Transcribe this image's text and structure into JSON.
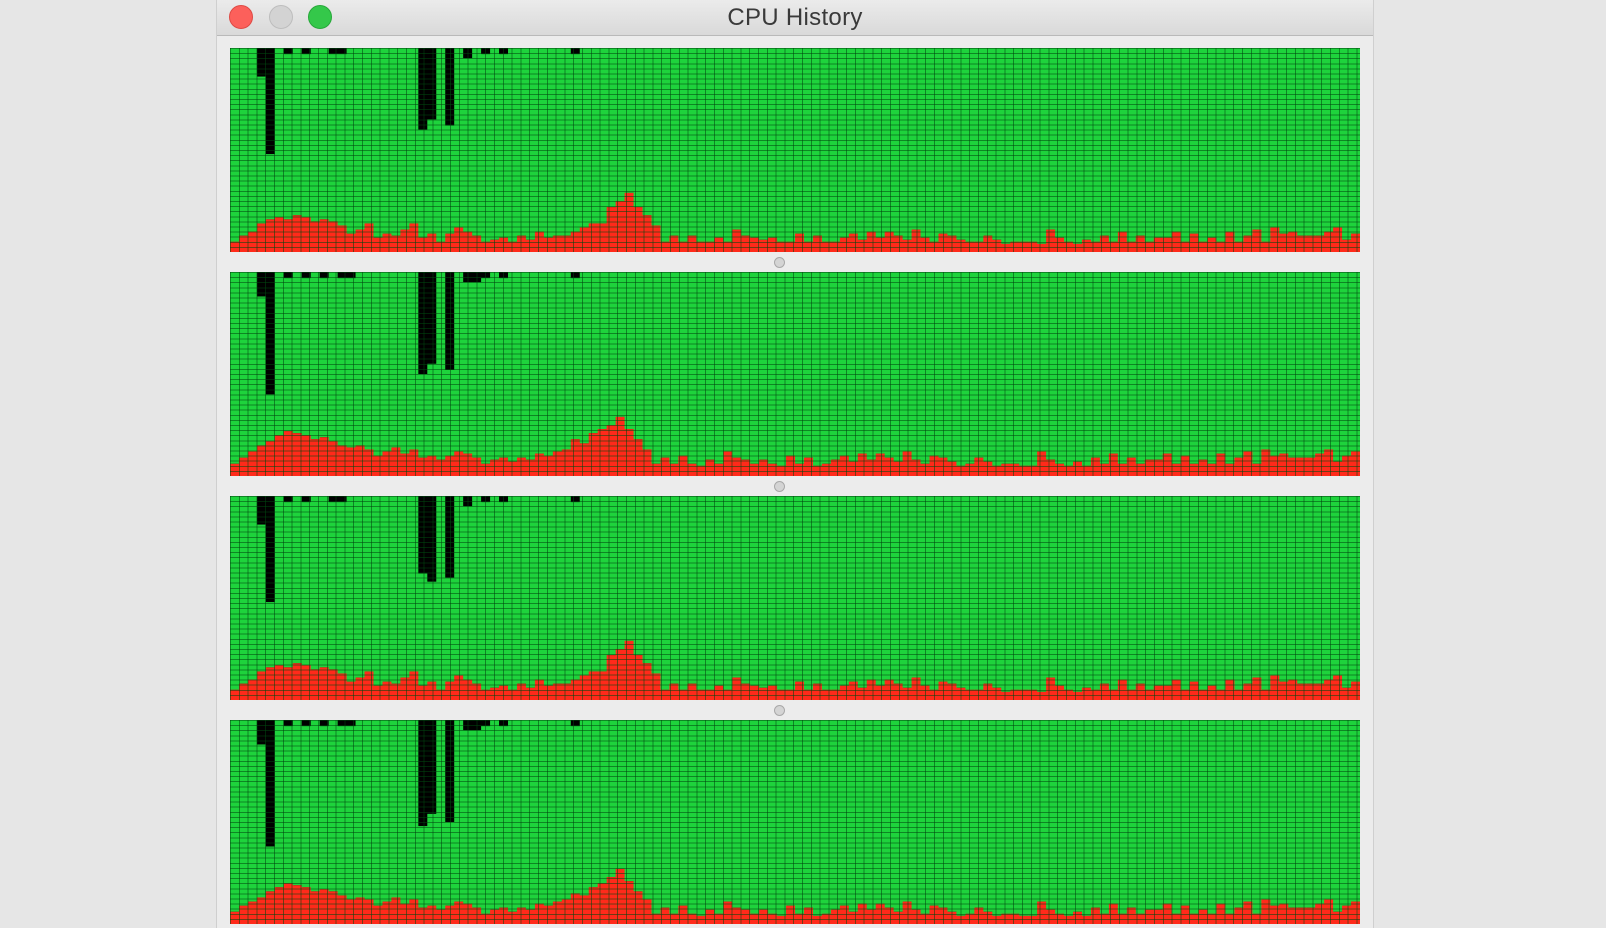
{
  "window": {
    "title": "CPU History",
    "buttons": [
      "close",
      "minimize",
      "zoom"
    ]
  },
  "colors": {
    "idle": "#1ed33c",
    "user": "#000000",
    "system": "#ff2a1a",
    "grid": "#0b3d12",
    "close": "#fc605b",
    "minimize": "#d3d3d3",
    "zoom": "#34c84a"
  },
  "chart_data": [
    {
      "type": "bar",
      "name": "",
      "samples": 126,
      "ylim": [
        0,
        100
      ],
      "series": [
        {
          "name": "system",
          "values": [
            5,
            8,
            10,
            14,
            16,
            17,
            16,
            18,
            17,
            15,
            16,
            15,
            13,
            9,
            11,
            14,
            7,
            9,
            8,
            11,
            14,
            7,
            9,
            5,
            9,
            12,
            10,
            8,
            5,
            6,
            7,
            5,
            8,
            6,
            10,
            7,
            8,
            8,
            10,
            12,
            14,
            14,
            22,
            25,
            29,
            22,
            18,
            13,
            5,
            8,
            5,
            8,
            5,
            5,
            7,
            5,
            11,
            8,
            7,
            6,
            7,
            5,
            5,
            9,
            5,
            8,
            5,
            5,
            7,
            9,
            6,
            10,
            7,
            10,
            8,
            6,
            11,
            7,
            5,
            9,
            8,
            6,
            5,
            5,
            8,
            6,
            4,
            5,
            5,
            5,
            4,
            11,
            7,
            5,
            4,
            6,
            5,
            8,
            5,
            10,
            5,
            8,
            5,
            7,
            7,
            10,
            5,
            9,
            5,
            7,
            5,
            10,
            5,
            8,
            11,
            5,
            12,
            9,
            10,
            8,
            8,
            8,
            10,
            12,
            6,
            9
          ]
        },
        {
          "name": "user",
          "values": [
            0,
            0,
            0,
            14,
            52,
            0,
            3,
            0,
            3,
            0,
            0,
            3,
            3,
            0,
            0,
            0,
            0,
            0,
            0,
            0,
            0,
            40,
            35,
            0,
            38,
            0,
            5,
            0,
            3,
            0,
            3,
            0,
            0,
            0,
            0,
            0,
            0,
            0,
            3,
            0,
            0,
            0,
            0,
            0,
            0,
            0,
            0,
            0,
            0,
            0,
            0,
            0,
            0,
            0,
            0,
            0,
            0,
            0,
            0,
            0,
            0,
            0,
            0,
            0,
            0,
            0,
            0,
            0,
            0,
            0,
            0,
            0,
            0,
            0,
            0,
            0,
            0,
            0,
            0,
            0,
            0,
            0,
            0,
            0,
            0,
            0,
            0,
            0,
            0,
            0,
            0,
            0,
            0,
            0,
            0,
            0,
            0,
            0,
            0,
            0,
            0,
            0,
            0,
            0,
            0,
            0,
            0,
            0,
            0,
            0,
            0,
            0,
            0,
            0,
            0,
            0,
            0,
            0,
            0,
            0,
            0,
            0,
            0,
            0,
            0,
            0
          ]
        }
      ]
    },
    {
      "type": "bar",
      "name": "",
      "samples": 126,
      "ylim": [
        0,
        100
      ],
      "series": [
        {
          "name": "system",
          "values": [
            6,
            9,
            12,
            15,
            17,
            20,
            22,
            21,
            20,
            18,
            19,
            17,
            15,
            14,
            15,
            13,
            10,
            12,
            14,
            11,
            13,
            9,
            10,
            8,
            10,
            12,
            11,
            9,
            6,
            8,
            9,
            7,
            9,
            8,
            11,
            10,
            12,
            13,
            18,
            16,
            21,
            23,
            25,
            29,
            23,
            18,
            13,
            6,
            9,
            6,
            10,
            6,
            5,
            8,
            6,
            12,
            9,
            8,
            6,
            8,
            6,
            5,
            10,
            6,
            9,
            5,
            6,
            8,
            10,
            7,
            11,
            8,
            11,
            9,
            7,
            12,
            8,
            6,
            10,
            9,
            7,
            5,
            6,
            9,
            7,
            5,
            6,
            6,
            5,
            5,
            12,
            8,
            6,
            5,
            7,
            5,
            9,
            6,
            11,
            6,
            9,
            6,
            8,
            8,
            11,
            6,
            10,
            6,
            8,
            6,
            11,
            6,
            9,
            12,
            6,
            13,
            10,
            11,
            9,
            9,
            9,
            11,
            13,
            7,
            10,
            12
          ]
        },
        {
          "name": "user",
          "values": [
            0,
            0,
            0,
            12,
            60,
            0,
            3,
            0,
            3,
            0,
            3,
            0,
            3,
            3,
            0,
            0,
            0,
            0,
            0,
            0,
            0,
            50,
            45,
            0,
            48,
            0,
            5,
            5,
            3,
            0,
            3,
            0,
            0,
            0,
            0,
            0,
            0,
            0,
            3,
            0,
            0,
            0,
            0,
            0,
            0,
            0,
            0,
            0,
            0,
            0,
            0,
            0,
            0,
            0,
            0,
            0,
            0,
            0,
            0,
            0,
            0,
            0,
            0,
            0,
            0,
            0,
            0,
            0,
            0,
            0,
            0,
            0,
            0,
            0,
            0,
            0,
            0,
            0,
            0,
            0,
            0,
            0,
            0,
            0,
            0,
            0,
            0,
            0,
            0,
            0,
            0,
            0,
            0,
            0,
            0,
            0,
            0,
            0,
            0,
            0,
            0,
            0,
            0,
            0,
            0,
            0,
            0,
            0,
            0,
            0,
            0,
            0,
            0,
            0,
            0,
            0,
            0,
            0,
            0,
            0,
            0,
            0,
            0,
            0,
            0,
            0
          ]
        }
      ]
    },
    {
      "type": "bar",
      "name": "",
      "samples": 126,
      "ylim": [
        0,
        100
      ],
      "series": [
        {
          "name": "system",
          "values": [
            5,
            8,
            10,
            14,
            16,
            17,
            16,
            18,
            17,
            15,
            16,
            15,
            13,
            9,
            11,
            14,
            7,
            9,
            8,
            11,
            14,
            7,
            9,
            5,
            9,
            12,
            10,
            8,
            5,
            6,
            7,
            5,
            8,
            6,
            10,
            7,
            8,
            8,
            10,
            12,
            14,
            14,
            22,
            25,
            29,
            22,
            18,
            13,
            5,
            8,
            5,
            8,
            5,
            5,
            7,
            5,
            11,
            8,
            7,
            6,
            7,
            5,
            5,
            9,
            5,
            8,
            5,
            5,
            7,
            9,
            6,
            10,
            7,
            10,
            8,
            6,
            11,
            7,
            5,
            9,
            8,
            6,
            5,
            5,
            8,
            6,
            4,
            5,
            5,
            5,
            4,
            11,
            7,
            5,
            4,
            6,
            5,
            8,
            5,
            10,
            5,
            8,
            5,
            7,
            7,
            10,
            5,
            9,
            5,
            7,
            5,
            10,
            5,
            8,
            11,
            5,
            12,
            9,
            10,
            8,
            8,
            8,
            10,
            12,
            6,
            9
          ]
        },
        {
          "name": "user",
          "values": [
            0,
            0,
            0,
            14,
            52,
            0,
            3,
            0,
            3,
            0,
            0,
            3,
            3,
            0,
            0,
            0,
            0,
            0,
            0,
            0,
            0,
            38,
            42,
            0,
            40,
            0,
            5,
            0,
            3,
            0,
            3,
            0,
            0,
            0,
            0,
            0,
            0,
            0,
            3,
            0,
            0,
            0,
            0,
            0,
            0,
            0,
            0,
            0,
            0,
            0,
            0,
            0,
            0,
            0,
            0,
            0,
            0,
            0,
            0,
            0,
            0,
            0,
            0,
            0,
            0,
            0,
            0,
            0,
            0,
            0,
            0,
            0,
            0,
            0,
            0,
            0,
            0,
            0,
            0,
            0,
            0,
            0,
            0,
            0,
            0,
            0,
            0,
            0,
            0,
            0,
            0,
            0,
            0,
            0,
            0,
            0,
            0,
            0,
            0,
            0,
            0,
            0,
            0,
            0,
            0,
            0,
            0,
            0,
            0,
            0,
            0,
            0,
            0,
            0,
            0,
            0,
            0,
            0,
            0,
            0,
            0,
            0,
            0,
            0,
            0,
            0
          ]
        }
      ]
    },
    {
      "type": "bar",
      "name": "",
      "samples": 126,
      "ylim": [
        0,
        100
      ],
      "series": [
        {
          "name": "system",
          "values": [
            6,
            9,
            11,
            13,
            16,
            18,
            20,
            19,
            18,
            16,
            17,
            16,
            14,
            12,
            13,
            12,
            9,
            11,
            13,
            10,
            12,
            8,
            9,
            7,
            9,
            11,
            10,
            8,
            5,
            7,
            8,
            6,
            8,
            7,
            10,
            9,
            11,
            12,
            15,
            14,
            18,
            20,
            23,
            27,
            21,
            16,
            12,
            5,
            8,
            5,
            9,
            5,
            4,
            7,
            5,
            11,
            8,
            7,
            5,
            7,
            5,
            4,
            9,
            5,
            8,
            4,
            5,
            7,
            9,
            6,
            10,
            7,
            10,
            8,
            6,
            11,
            7,
            5,
            9,
            8,
            6,
            4,
            5,
            8,
            6,
            4,
            5,
            5,
            4,
            4,
            11,
            7,
            5,
            4,
            6,
            4,
            8,
            5,
            10,
            5,
            8,
            5,
            7,
            7,
            10,
            5,
            9,
            5,
            7,
            5,
            10,
            5,
            8,
            11,
            5,
            12,
            9,
            10,
            8,
            8,
            8,
            10,
            12,
            6,
            9,
            11
          ]
        },
        {
          "name": "user",
          "values": [
            0,
            0,
            0,
            12,
            62,
            0,
            3,
            0,
            3,
            0,
            3,
            0,
            3,
            3,
            0,
            0,
            0,
            0,
            0,
            0,
            0,
            52,
            46,
            0,
            50,
            0,
            5,
            5,
            3,
            0,
            3,
            0,
            0,
            0,
            0,
            0,
            0,
            0,
            3,
            0,
            0,
            0,
            0,
            0,
            0,
            0,
            0,
            0,
            0,
            0,
            0,
            0,
            0,
            0,
            0,
            0,
            0,
            0,
            0,
            0,
            0,
            0,
            0,
            0,
            0,
            0,
            0,
            0,
            0,
            0,
            0,
            0,
            0,
            0,
            0,
            0,
            0,
            0,
            0,
            0,
            0,
            0,
            0,
            0,
            0,
            0,
            0,
            0,
            0,
            0,
            0,
            0,
            0,
            0,
            0,
            0,
            0,
            0,
            0,
            0,
            0,
            0,
            0,
            0,
            0,
            0,
            0,
            0,
            0,
            0,
            0,
            0,
            0,
            0,
            0,
            0,
            0,
            0,
            0,
            0,
            0,
            0,
            0,
            0,
            0,
            0
          ]
        }
      ]
    }
  ]
}
